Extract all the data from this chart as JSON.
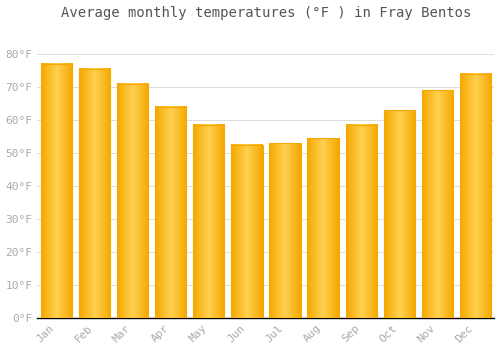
{
  "title": "Average monthly temperatures (°F ) in Fray Bentos",
  "months": [
    "Jan",
    "Feb",
    "Mar",
    "Apr",
    "May",
    "Jun",
    "Jul",
    "Aug",
    "Sep",
    "Oct",
    "Nov",
    "Dec"
  ],
  "values": [
    77,
    75.5,
    71,
    64,
    58.5,
    52.5,
    53,
    54.5,
    58.5,
    63,
    69,
    74
  ],
  "bar_color_center": "#FFD050",
  "bar_color_edge": "#F5A800",
  "background_color": "#FFFFFF",
  "plot_bg_color": "#F8F8F8",
  "grid_color": "#DDDDDD",
  "tick_label_color": "#AAAAAA",
  "title_color": "#555555",
  "axis_line_color": "#000000",
  "ylim": [
    0,
    88
  ],
  "yticks": [
    0,
    10,
    20,
    30,
    40,
    50,
    60,
    70,
    80
  ],
  "ytick_labels": [
    "0°F",
    "10°F",
    "20°F",
    "30°F",
    "40°F",
    "50°F",
    "60°F",
    "70°F",
    "80°F"
  ],
  "title_fontsize": 10,
  "tick_fontsize": 8,
  "figsize": [
    5.0,
    3.5
  ],
  "dpi": 100
}
